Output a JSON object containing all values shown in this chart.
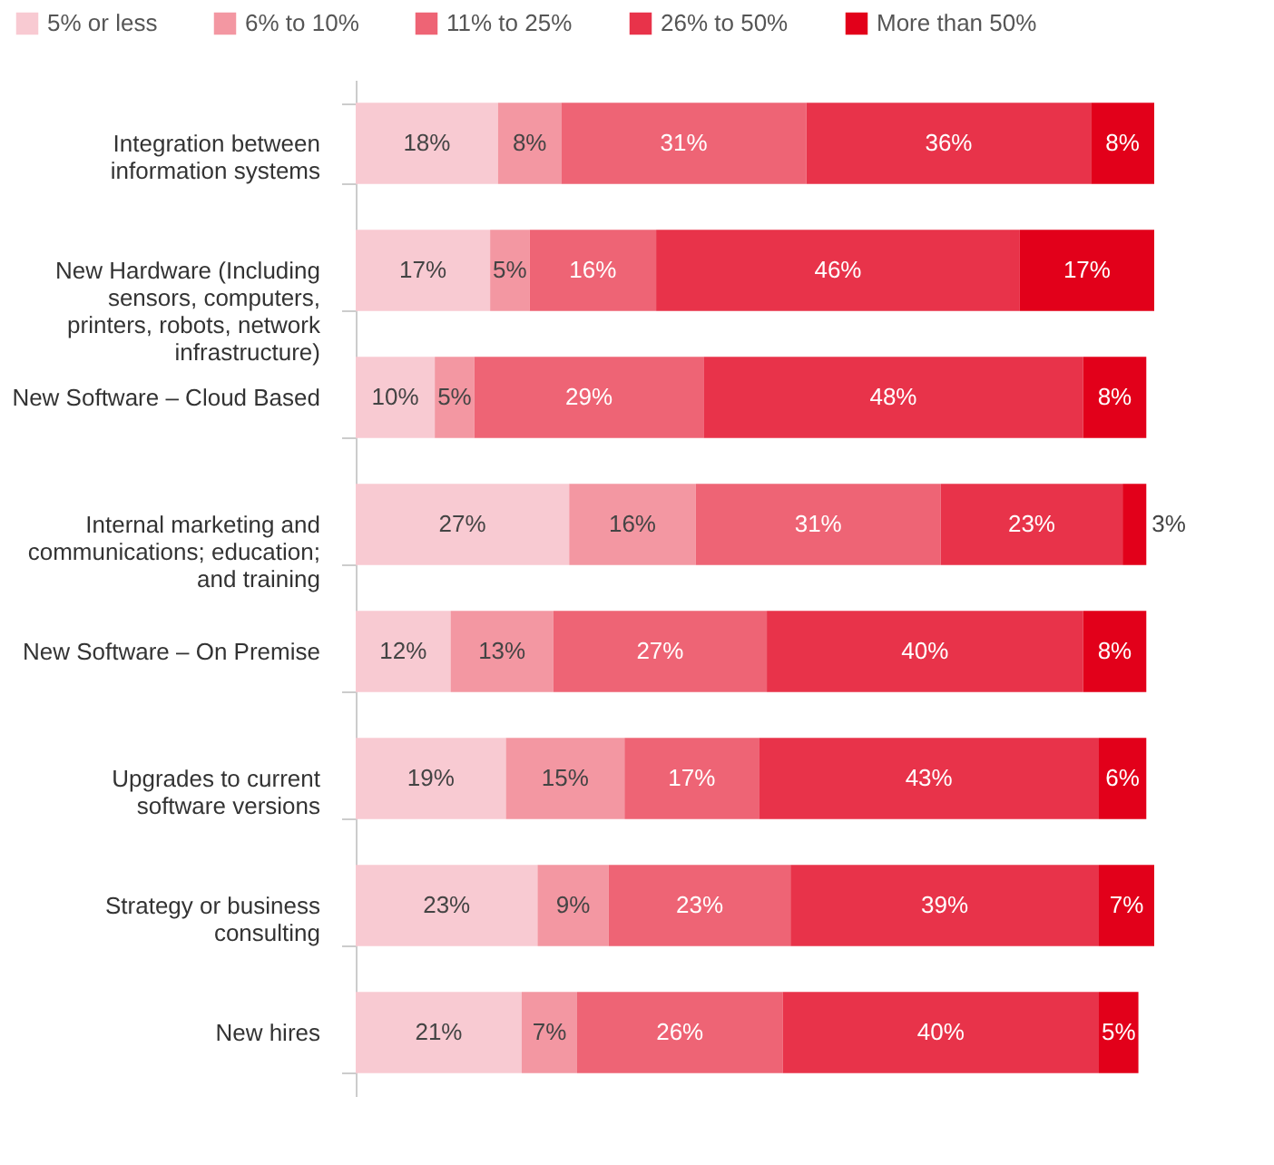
{
  "chart_data": {
    "type": "bar",
    "orientation": "horizontal",
    "stacked": true,
    "legend": "top",
    "tick_labels": "y",
    "categories": [
      "Integration between information systems",
      "New Hardware (Including sensors, computers, printers, robots, network infrastructure)",
      "New Software – Cloud Based",
      "Internal marketing and communications; education; and training",
      "New Software – On Premise",
      "Upgrades to current software versions",
      "Strategy or business consulting",
      "New hires"
    ],
    "series": [
      {
        "name": "5% or less",
        "color": "#f8cad2",
        "values": [
          18,
          17,
          10,
          27,
          12,
          19,
          23,
          21
        ],
        "value_labels": [
          "18%",
          "17%",
          "10%",
          "27%",
          "12%",
          "19%",
          "23%",
          "21%"
        ]
      },
      {
        "name": "6% to 10%",
        "color": "#f397a2",
        "values": [
          8,
          5,
          5,
          16,
          13,
          15,
          9,
          7
        ],
        "value_labels": [
          "8%",
          "5%",
          "5%",
          "16%",
          "13%",
          "15%",
          "9%",
          "7%"
        ]
      },
      {
        "name": "11% to 25%",
        "color": "#ee6475",
        "values": [
          31,
          16,
          29,
          31,
          27,
          17,
          23,
          26
        ],
        "value_labels": [
          "31%",
          "16%",
          "29%",
          "31%",
          "27%",
          "17%",
          "23%",
          "26%"
        ]
      },
      {
        "name": "26% to 50%",
        "color": "#e8334a",
        "values": [
          36,
          46,
          48,
          23,
          40,
          43,
          39,
          40
        ],
        "value_labels": [
          "36%",
          "46%",
          "48%",
          "23%",
          "40%",
          "43%",
          "39%",
          "40%"
        ]
      },
      {
        "name": "More than 50%",
        "color": "#e2001a",
        "values": [
          8,
          17,
          8,
          3,
          8,
          6,
          7,
          5
        ],
        "value_labels": [
          "8%",
          "17%",
          "8%",
          "3%",
          "8%",
          "6%",
          "7%",
          "5%"
        ]
      }
    ]
  }
}
